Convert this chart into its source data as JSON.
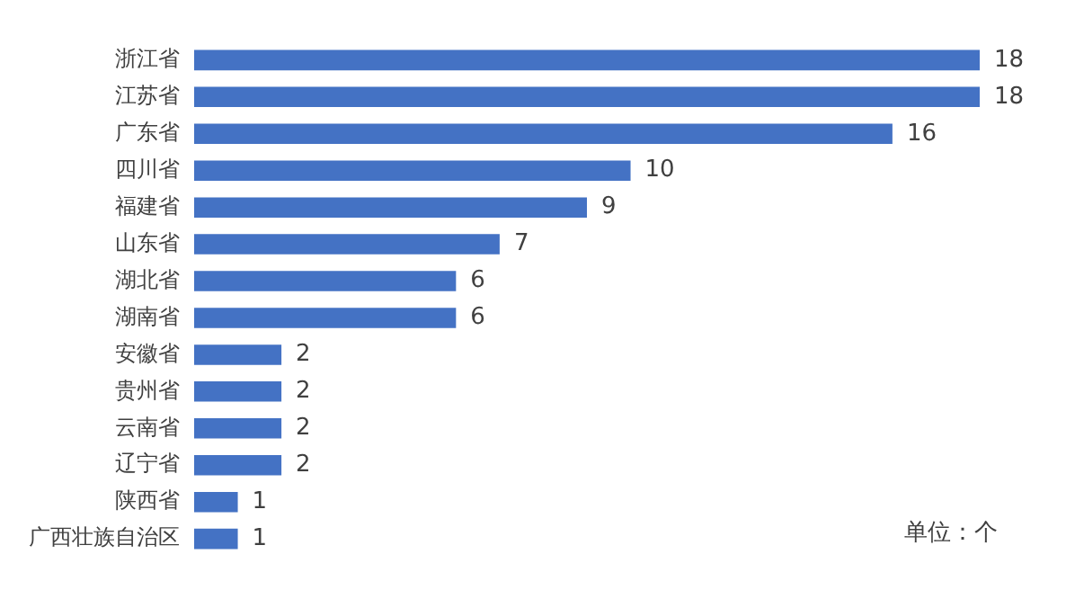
{
  "chart_data": {
    "type": "bar",
    "orientation": "horizontal",
    "categories": [
      "浙江省",
      "江苏省",
      "广东省",
      "四川省",
      "福建省",
      "山东省",
      "湖北省",
      "湖南省",
      "安徽省",
      "贵州省",
      "云南省",
      "辽宁省",
      "陕西省",
      "广西壮族自治区"
    ],
    "values": [
      18,
      18,
      16,
      10,
      9,
      7,
      6,
      6,
      2,
      2,
      2,
      2,
      1,
      1
    ],
    "color": "#4472c4",
    "data_labels": true,
    "legend": false,
    "annotations": [
      "单位：个"
    ]
  }
}
